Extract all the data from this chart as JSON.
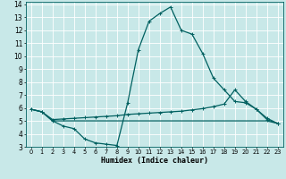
{
  "xlabel": "Humidex (Indice chaleur)",
  "bg_color": "#c8e8e8",
  "grid_color": "#ffffff",
  "line_color": "#006060",
  "xlim": [
    -0.5,
    23.5
  ],
  "ylim": [
    3,
    14.2
  ],
  "xticks": [
    0,
    1,
    2,
    3,
    4,
    5,
    6,
    7,
    8,
    9,
    10,
    11,
    12,
    13,
    14,
    15,
    16,
    17,
    18,
    19,
    20,
    21,
    22,
    23
  ],
  "yticks": [
    3,
    4,
    5,
    6,
    7,
    8,
    9,
    10,
    11,
    12,
    13,
    14
  ],
  "series1_x": [
    0,
    1,
    2,
    3,
    4,
    5,
    6,
    7,
    8,
    9,
    10,
    11,
    12,
    13,
    14,
    15,
    16,
    17,
    18,
    19,
    20,
    21,
    22,
    23
  ],
  "series1_y": [
    5.9,
    5.7,
    5.0,
    4.6,
    4.4,
    3.6,
    3.3,
    3.2,
    3.1,
    6.4,
    10.5,
    12.7,
    13.3,
    13.8,
    12.0,
    11.7,
    10.2,
    8.3,
    7.4,
    6.5,
    6.4,
    5.9,
    5.2,
    4.8
  ],
  "series2_x": [
    0,
    1,
    2,
    3,
    4,
    5,
    6,
    7,
    8,
    9,
    10,
    11,
    12,
    13,
    14,
    15,
    16,
    17,
    18,
    19,
    20,
    21,
    22,
    23
  ],
  "series2_y": [
    5.9,
    5.7,
    5.1,
    5.15,
    5.2,
    5.25,
    5.3,
    5.35,
    5.4,
    5.5,
    5.55,
    5.6,
    5.65,
    5.7,
    5.75,
    5.85,
    5.95,
    6.1,
    6.3,
    7.4,
    6.5,
    5.9,
    5.1,
    4.8
  ],
  "series3_x": [
    0,
    1,
    2,
    3,
    4,
    5,
    6,
    7,
    8,
    9,
    10,
    11,
    12,
    13,
    14,
    15,
    16,
    17,
    18,
    19,
    20,
    21,
    22,
    23
  ],
  "series3_y": [
    5.9,
    5.7,
    5.0,
    5.0,
    5.0,
    5.0,
    5.0,
    5.0,
    5.0,
    5.0,
    5.0,
    5.0,
    5.0,
    5.0,
    5.0,
    5.0,
    5.0,
    5.0,
    5.0,
    5.0,
    5.0,
    5.0,
    5.0,
    4.8
  ]
}
